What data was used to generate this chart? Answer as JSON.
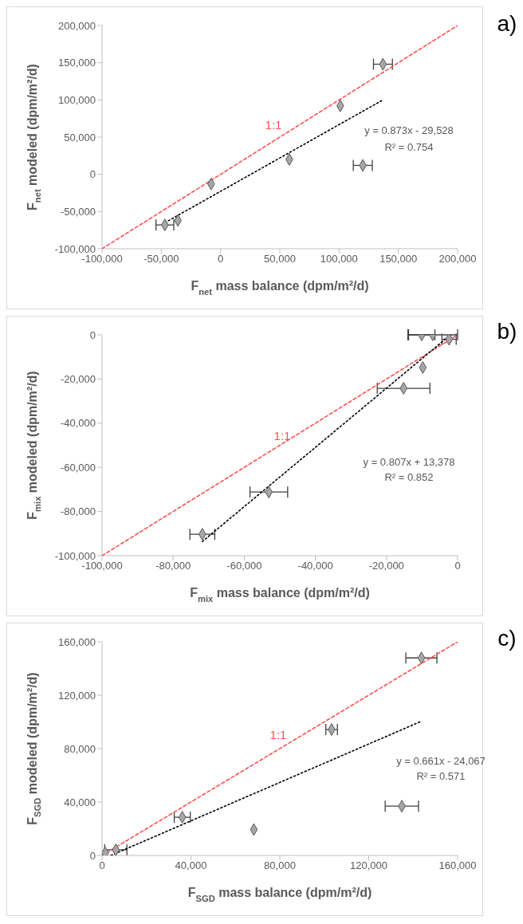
{
  "chart_data": [
    {
      "type": "scatter",
      "xlabel": "F$_{net}$ mass balance (dpm/m²/d)",
      "ylabel": "F$_{net}$ modeled (dpm/m²/d)",
      "xlim": [
        -100000,
        200000
      ],
      "xticks": [
        {
          "value": -100000,
          "label": "-100,000"
        },
        {
          "value": -50000,
          "label": "-50,000"
        },
        {
          "value": 0,
          "label": "0"
        },
        {
          "value": 50000,
          "label": "50,000"
        },
        {
          "value": 100000,
          "label": "100,000"
        },
        {
          "value": 150000,
          "label": "150,000"
        },
        {
          "value": 200000,
          "label": "200,000"
        }
      ],
      "ylim": [
        -100000,
        200000
      ],
      "yticks": [
        {
          "value": -100000,
          "label": "-100,000"
        },
        {
          "value": -50000,
          "label": "-50,000"
        },
        {
          "value": 0,
          "label": "0"
        },
        {
          "value": 50000,
          "label": "50,000"
        },
        {
          "value": 100000,
          "label": "100,000"
        },
        {
          "value": 150000,
          "label": "150,000"
        },
        {
          "value": 200000,
          "label": "200,000"
        }
      ],
      "annotations": [
        "a)",
        "y = 0.873x - 29,528",
        "R² = 0.754"
      ],
      "series": [
        {
          "name": "1:1",
          "type": "line",
          "color": "#ff5050",
          "line_style": "dashed",
          "x": [
            -100000,
            200000
          ],
          "values": [
            -100000,
            200000
          ]
        },
        {
          "type": "line",
          "color": "#000000",
          "line_style": "dotted",
          "x": [
            -47000,
            137000
          ],
          "values": [
            -65000,
            100000
          ]
        },
        {
          "type": "scatter",
          "color": "#a6a6a6",
          "marker": "diamond",
          "x": [
            137000,
            101000,
            120000,
            58000,
            -8000,
            -36000,
            -47000
          ],
          "values": [
            148000,
            92000,
            12000,
            20000,
            -13000,
            -62000,
            -68000
          ],
          "xerrors": [
            8000,
            null,
            8000,
            null,
            null,
            null,
            7500
          ]
        }
      ]
    },
    {
      "type": "scatter",
      "xlabel": "F$_{mix}$ mass balance (dpm/m²/d)",
      "ylabel": "F$_{mix}$ modeled (dpm/m²/d)",
      "xlim": [
        -100000,
        0
      ],
      "xticks": [
        {
          "value": -100000,
          "label": "-100,000"
        },
        {
          "value": -80000,
          "label": "-80,000"
        },
        {
          "value": -60000,
          "label": "-60,000"
        },
        {
          "value": -40000,
          "label": "-40,000"
        },
        {
          "value": -20000,
          "label": "-20,000"
        },
        {
          "value": 0,
          "label": "0"
        }
      ],
      "ylim": [
        -100000,
        0
      ],
      "yticks": [
        {
          "value": -100000,
          "label": "-100,000"
        },
        {
          "value": -80000,
          "label": "-80,000"
        },
        {
          "value": -60000,
          "label": "-60,000"
        },
        {
          "value": -40000,
          "label": "-40,000"
        },
        {
          "value": -20000,
          "label": "-20,000"
        },
        {
          "value": 0,
          "label": "0"
        }
      ],
      "annotations": [
        "b)",
        "y = 0.807x + 13,378",
        "R² = 0.852"
      ],
      "series": [
        {
          "name": "1:1",
          "type": "line",
          "color": "#ff5050",
          "line_style": "dashed",
          "x": [
            -100000,
            0
          ],
          "values": [
            -100000,
            0
          ]
        },
        {
          "type": "line",
          "color": "#000000",
          "line_style": "dotted",
          "x": [
            -71800,
            -2000
          ],
          "values": [
            -93600,
            0
          ]
        },
        {
          "type": "scatter",
          "color": "#a6a6a6",
          "marker": "diamond",
          "x": [
            -10100,
            -7000,
            -2400,
            -9800,
            -15200,
            -53100,
            -71800
          ],
          "values": [
            0,
            0,
            -2000,
            -14800,
            -24200,
            -71200,
            -90300
          ],
          "xerrors": [
            3700,
            7000,
            2000,
            null,
            7400,
            5300,
            3500
          ]
        }
      ]
    },
    {
      "type": "scatter",
      "xlabel": "F$_{SGD}$ mass balance (dpm/m²/d)",
      "ylabel": "F$_{SGD}$ modeled (dpm/m²/d)",
      "xlim": [
        0,
        160000
      ],
      "xticks": [
        {
          "value": 0,
          "label": "0"
        },
        {
          "value": 40000,
          "label": "40,000"
        },
        {
          "value": 80000,
          "label": "80,000"
        },
        {
          "value": 120000,
          "label": "120,000"
        },
        {
          "value": 160000,
          "label": "160,000"
        }
      ],
      "ylim": [
        0,
        160000
      ],
      "yticks": [
        {
          "value": 0,
          "label": "0"
        },
        {
          "value": 40000,
          "label": "40,000"
        },
        {
          "value": 80000,
          "label": "80,000"
        },
        {
          "value": 120000,
          "label": "120,000"
        },
        {
          "value": 160000,
          "label": "160,000"
        }
      ],
      "annotations": [
        "c)",
        "y = 0.661x - 24,067",
        "R² = 0.571"
      ],
      "series": [
        {
          "name": "1:1",
          "type": "line",
          "color": "#ff5050",
          "line_style": "dashed",
          "x": [
            0,
            160000
          ],
          "values": [
            0,
            160000
          ]
        },
        {
          "type": "line",
          "color": "#000000",
          "line_style": "dotted",
          "x": [
            4000,
            143000
          ],
          "values": [
            0,
            100000
          ]
        },
        {
          "type": "scatter",
          "color": "#a6a6a6",
          "marker": "diamond",
          "x": [
            143700,
            103300,
            134900,
            68300,
            36100,
            6200,
            1400
          ],
          "values": [
            147900,
            94300,
            36900,
            19400,
            28600,
            4200,
            2000
          ],
          "xerrors": [
            7000,
            2600,
            7500,
            null,
            3600,
            5000,
            null
          ]
        }
      ]
    }
  ]
}
